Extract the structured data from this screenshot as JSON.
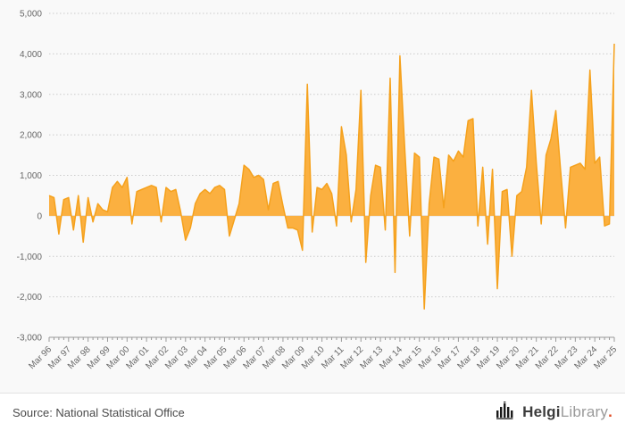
{
  "chart_data": {
    "type": "area",
    "frequency": "quarterly",
    "x_start": "Mar 96",
    "x_end": "Mar 25",
    "x_tick_labels": [
      "Mar 96",
      "Mar 97",
      "Mar 98",
      "Mar 99",
      "Mar 00",
      "Mar 01",
      "Mar 02",
      "Mar 03",
      "Mar 04",
      "Mar 05",
      "Mar 06",
      "Mar 07",
      "Mar 08",
      "Mar 09",
      "Mar 10",
      "Mar 11",
      "Mar 12",
      "Mar 13",
      "Mar 14",
      "Mar 15",
      "Mar 16",
      "Mar 17",
      "Mar 18",
      "Mar 19",
      "Mar 20",
      "Mar 21",
      "Mar 22",
      "Mar 23",
      "Mar 24",
      "Mar 25"
    ],
    "y_ticks": [
      -3000,
      -2000,
      -1000,
      0,
      1000,
      2000,
      3000,
      4000,
      5000
    ],
    "y_tick_labels": [
      "-3,000",
      "-2,000",
      "-1,000",
      "0",
      "1,000",
      "2,000",
      "3,000",
      "4,000",
      "5,000"
    ],
    "ylim": [
      -3000,
      5000
    ],
    "values": [
      500,
      450,
      -450,
      400,
      450,
      -350,
      500,
      -650,
      450,
      -150,
      300,
      150,
      100,
      700,
      850,
      700,
      950,
      -200,
      600,
      650,
      700,
      750,
      700,
      -150,
      700,
      600,
      650,
      100,
      -600,
      -300,
      300,
      550,
      650,
      550,
      700,
      750,
      650,
      -500,
      -100,
      300,
      1250,
      1150,
      950,
      1000,
      900,
      150,
      800,
      850,
      250,
      -300,
      -300,
      -350,
      -850,
      3250,
      -400,
      700,
      650,
      800,
      550,
      -250,
      2200,
      1500,
      -150,
      650,
      3100,
      -1150,
      500,
      1250,
      1200,
      -350,
      3400,
      -1400,
      3950,
      1650,
      -500,
      1550,
      1450,
      -2300,
      300,
      1450,
      1400,
      200,
      1500,
      1350,
      1600,
      1450,
      2350,
      2400,
      -250,
      1200,
      -700,
      1150,
      -1800,
      600,
      650,
      -1000,
      500,
      600,
      1200,
      3100,
      1300,
      -200,
      1500,
      1900,
      2600,
      1100,
      -300,
      1200,
      1250,
      1300,
      1150,
      3600,
      1300,
      1450,
      -250,
      -200,
      4250
    ],
    "color_fill": "#FBB040",
    "color_line": "#F5A11C",
    "grid": "dotted horizontal gridlines",
    "legend": "none"
  },
  "footer": {
    "source_label": "Source: National Statistical Office",
    "logo": {
      "brand_primary": "Helgi",
      "brand_secondary": "Library",
      "suffix": "."
    }
  }
}
